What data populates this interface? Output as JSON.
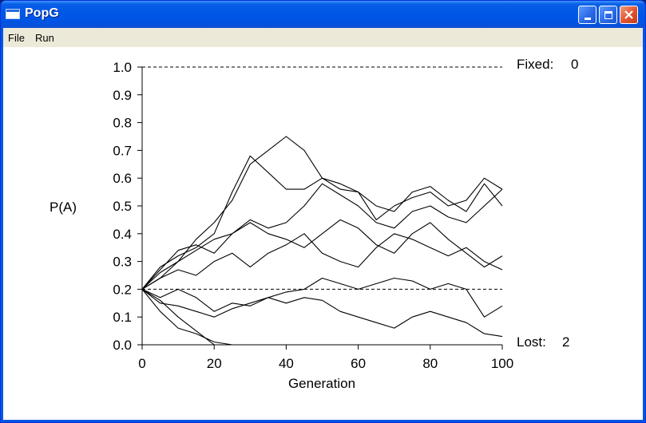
{
  "window": {
    "title": "PopG"
  },
  "menu": {
    "file_label": "File",
    "run_label": "Run"
  },
  "icons": {
    "app": "window-app-icon",
    "minimize": "minimize-icon",
    "maximize": "maximize-icon",
    "close": "close-icon"
  },
  "chart": {
    "fixed_label": "Fixed:",
    "fixed_value": "0",
    "lost_label": "Lost:",
    "lost_value": "2",
    "ylabel": "P(A)",
    "xlabel": "Generation",
    "dashed_reference_levels": [
      1.0,
      0.2,
      0.0
    ]
  },
  "chart_data": {
    "type": "line",
    "title": "",
    "xlabel": "Generation",
    "ylabel": "P(A)",
    "xlim": [
      0,
      100
    ],
    "ylim": [
      0,
      1
    ],
    "x_ticks": [
      "0",
      "20",
      "40",
      "60",
      "80",
      "100"
    ],
    "y_ticks": [
      "0.0",
      "0.1",
      "0.2",
      "0.3",
      "0.4",
      "0.5",
      "0.6",
      "0.7",
      "0.8",
      "0.9",
      "1.0"
    ],
    "grid": false,
    "series": [
      {
        "x": [
          0,
          5,
          10,
          15,
          20,
          25,
          30,
          35,
          40,
          45,
          50,
          55,
          60,
          65,
          70,
          75,
          80,
          85,
          90,
          95,
          100
        ],
        "y": [
          0.2,
          0.26,
          0.3,
          0.38,
          0.44,
          0.52,
          0.65,
          0.7,
          0.75,
          0.7,
          0.6,
          0.58,
          0.55,
          0.45,
          0.5,
          0.53,
          0.55,
          0.5,
          0.52,
          0.6,
          0.56
        ]
      },
      {
        "x": [
          0,
          5,
          10,
          15,
          20,
          25,
          30,
          35,
          40,
          45,
          50,
          55,
          60,
          65,
          70,
          75,
          80,
          85,
          90,
          95,
          100
        ],
        "y": [
          0.2,
          0.28,
          0.32,
          0.35,
          0.4,
          0.55,
          0.68,
          0.62,
          0.56,
          0.56,
          0.6,
          0.56,
          0.55,
          0.5,
          0.48,
          0.55,
          0.57,
          0.52,
          0.48,
          0.58,
          0.5
        ]
      },
      {
        "x": [
          0,
          5,
          10,
          15,
          20,
          25,
          30,
          35,
          40,
          45,
          50,
          55,
          60,
          65,
          70,
          75,
          80,
          85,
          90,
          95,
          100
        ],
        "y": [
          0.2,
          0.24,
          0.3,
          0.34,
          0.38,
          0.4,
          0.45,
          0.42,
          0.44,
          0.5,
          0.58,
          0.54,
          0.5,
          0.44,
          0.42,
          0.48,
          0.5,
          0.46,
          0.44,
          0.5,
          0.56
        ]
      },
      {
        "x": [
          0,
          5,
          10,
          15,
          20,
          25,
          30,
          35,
          40,
          45,
          50,
          55,
          60,
          65,
          70,
          75,
          80,
          85,
          90,
          95,
          100
        ],
        "y": [
          0.2,
          0.27,
          0.34,
          0.36,
          0.33,
          0.4,
          0.44,
          0.4,
          0.38,
          0.35,
          0.4,
          0.45,
          0.42,
          0.36,
          0.33,
          0.4,
          0.44,
          0.38,
          0.33,
          0.28,
          0.32
        ]
      },
      {
        "x": [
          0,
          5,
          10,
          15,
          20,
          25,
          30,
          35,
          40,
          45,
          50,
          55,
          60,
          65,
          70,
          75,
          80,
          85,
          90,
          95,
          100
        ],
        "y": [
          0.2,
          0.24,
          0.27,
          0.25,
          0.3,
          0.33,
          0.28,
          0.33,
          0.36,
          0.4,
          0.33,
          0.3,
          0.28,
          0.35,
          0.4,
          0.38,
          0.35,
          0.32,
          0.35,
          0.3,
          0.27
        ]
      },
      {
        "x": [
          0,
          5,
          10,
          15,
          20,
          25,
          30,
          35,
          40,
          45,
          50,
          55,
          60,
          65,
          70,
          75,
          80,
          85,
          90,
          95,
          100
        ],
        "y": [
          0.2,
          0.17,
          0.2,
          0.17,
          0.12,
          0.15,
          0.14,
          0.17,
          0.19,
          0.2,
          0.24,
          0.22,
          0.2,
          0.22,
          0.24,
          0.23,
          0.2,
          0.22,
          0.2,
          0.1,
          0.14
        ]
      },
      {
        "x": [
          0,
          5,
          10,
          15,
          20,
          25,
          30,
          35,
          40,
          45,
          50,
          55,
          60,
          65,
          70,
          75,
          80,
          85,
          90,
          95,
          100
        ],
        "y": [
          0.2,
          0.15,
          0.14,
          0.12,
          0.1,
          0.13,
          0.15,
          0.17,
          0.15,
          0.17,
          0.16,
          0.12,
          0.1,
          0.08,
          0.06,
          0.1,
          0.12,
          0.1,
          0.08,
          0.04,
          0.03
        ]
      },
      {
        "x": [
          0,
          5,
          10,
          15,
          20,
          25
        ],
        "y": [
          0.2,
          0.12,
          0.06,
          0.04,
          0.01,
          0.0
        ]
      },
      {
        "x": [
          0,
          5,
          10,
          15,
          20
        ],
        "y": [
          0.2,
          0.16,
          0.1,
          0.05,
          0.0
        ]
      }
    ]
  }
}
